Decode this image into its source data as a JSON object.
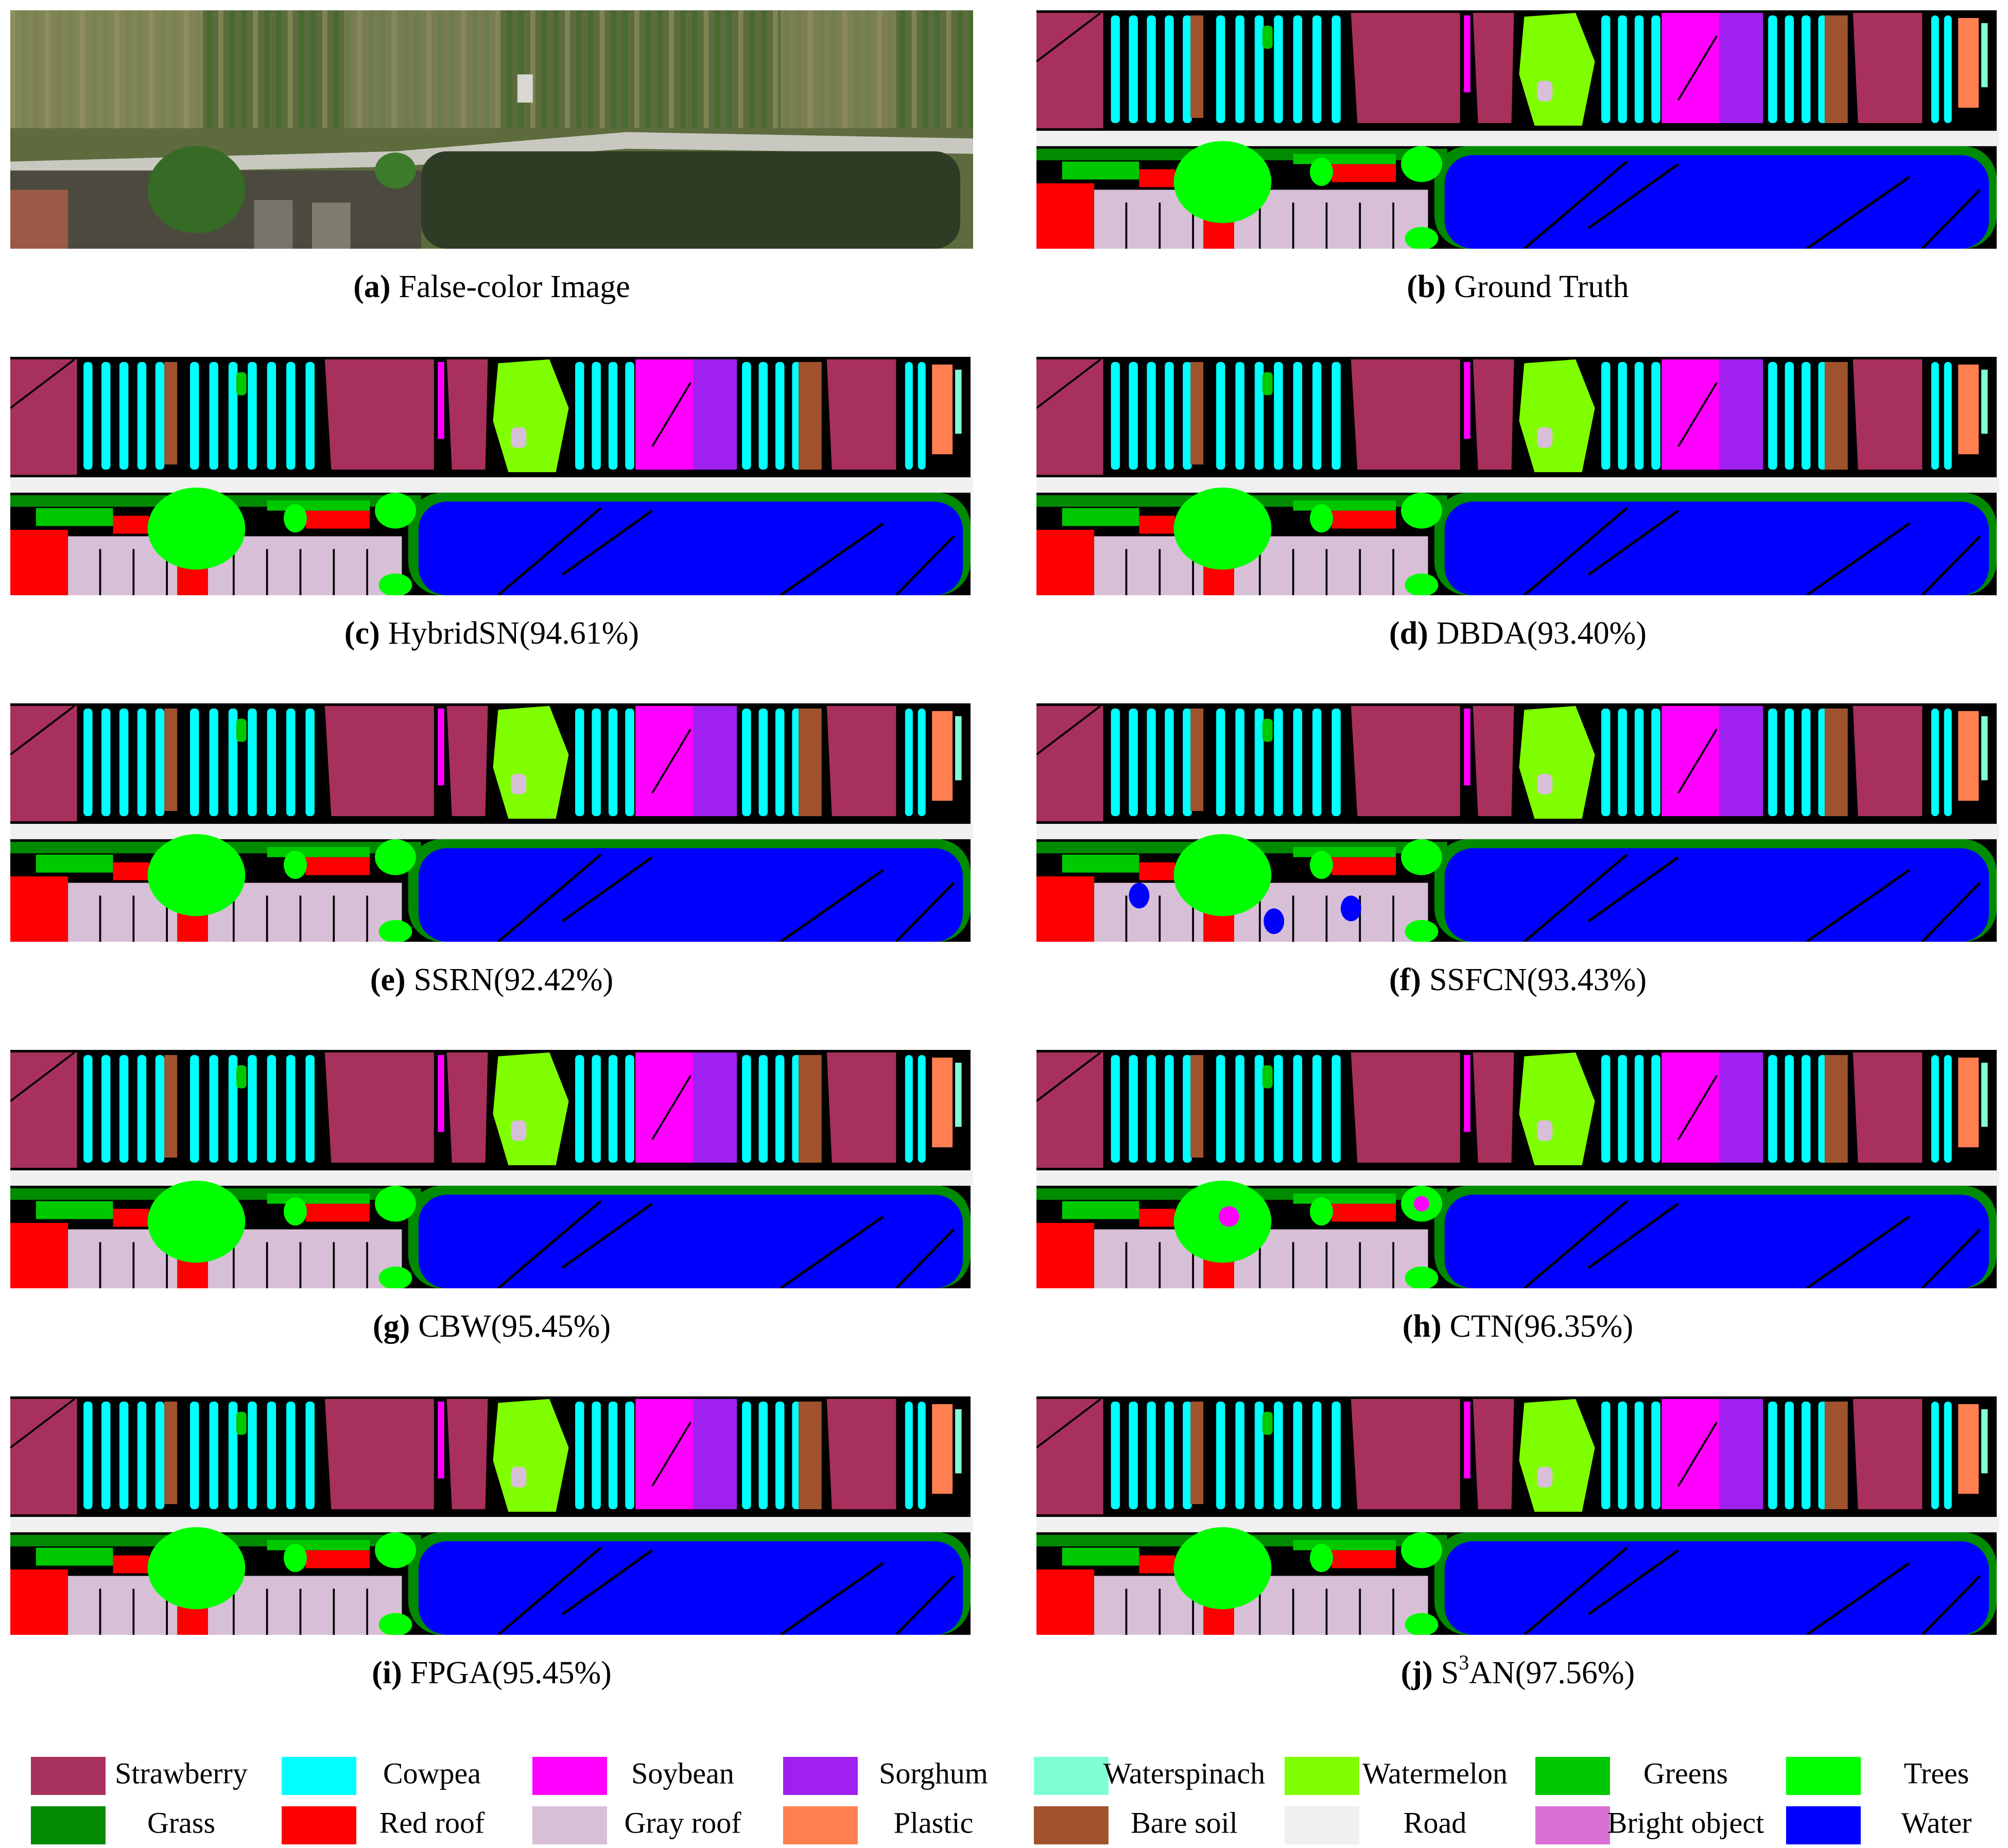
{
  "panels": [
    {
      "label": "(a)",
      "text": "False-color Image"
    },
    {
      "label": "(b)",
      "text": "Ground Truth"
    },
    {
      "label": "(c)",
      "text": "HybridSN(94.61%)"
    },
    {
      "label": "(d)",
      "text": "DBDA(93.40%)"
    },
    {
      "label": "(e)",
      "text": "SSRN(92.42%)"
    },
    {
      "label": "(f)",
      "text": "SSFCN(93.43%)"
    },
    {
      "label": "(g)",
      "text": "CBW(95.45%)"
    },
    {
      "label": "(h)",
      "text": "CTN(96.35%)"
    },
    {
      "label": "(i)",
      "text": "FPGA(95.45%)"
    },
    {
      "label": "(j)",
      "text": "S",
      "sup": "3",
      "text_tail": "AN(97.56%)"
    }
  ],
  "legend": [
    {
      "name": "Strawberry",
      "color": "#a8305c"
    },
    {
      "name": "Cowpea",
      "color": "#00ffff"
    },
    {
      "name": "Soybean",
      "color": "#ff00ff"
    },
    {
      "name": "Sorghum",
      "color": "#a020f0"
    },
    {
      "name": "Waterspinach",
      "color": "#7fffd4"
    },
    {
      "name": "Watermelon",
      "color": "#7fff00"
    },
    {
      "name": "Greens",
      "color": "#00c800"
    },
    {
      "name": "Trees",
      "color": "#00ff00"
    },
    {
      "name": "Grass",
      "color": "#008b00"
    },
    {
      "name": "Red roof",
      "color": "#ff0000"
    },
    {
      "name": "Gray roof",
      "color": "#d8bfd8"
    },
    {
      "name": "Plastic",
      "color": "#ff7f50"
    },
    {
      "name": "Bare soil",
      "color": "#a0522d"
    },
    {
      "name": "Road",
      "color": "#f0f0f0"
    },
    {
      "name": "Bright object",
      "color": "#da70d6"
    },
    {
      "name": "Water",
      "color": "#0000ff"
    }
  ]
}
